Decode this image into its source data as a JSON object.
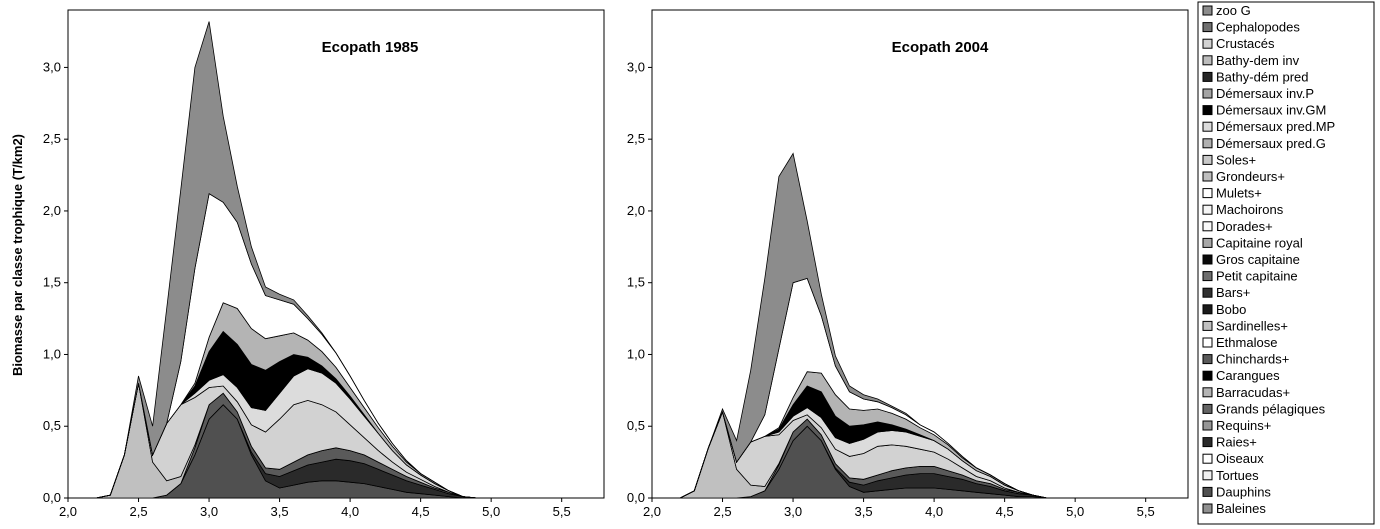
{
  "ylabel": "Biomasse par classe trophique (T/km2)",
  "legend": [
    {
      "label": "zoo G",
      "color": "#8c8c8c"
    },
    {
      "label": "Cephalopodes",
      "color": "#707070"
    },
    {
      "label": "Crustacés",
      "color": "#d2d2d2"
    },
    {
      "label": "Bathy-dem inv",
      "color": "#bcbcbc"
    },
    {
      "label": "Bathy-dém pred",
      "color": "#262626"
    },
    {
      "label": "Démersaux inv.P",
      "color": "#a4a4a4"
    },
    {
      "label": "Démersaux inv.GM",
      "color": "#000000"
    },
    {
      "label": "Démersaux pred.MP",
      "color": "#dcdcdc"
    },
    {
      "label": "Démersaux pred.G",
      "color": "#b0b0b0"
    },
    {
      "label": "Soles+",
      "color": "#c8c8c8"
    },
    {
      "label": "Grondeurs+",
      "color": "#bebebe"
    },
    {
      "label": "Mulets+",
      "color": "#ffffff"
    },
    {
      "label": "Machoirons",
      "color": "#f5f5f5"
    },
    {
      "label": "Dorades+",
      "color": "#fafafa"
    },
    {
      "label": "Capitaine royal",
      "color": "#a8a8a8"
    },
    {
      "label": "Gros capitaine",
      "color": "#0a0a0a"
    },
    {
      "label": "Petit capitaine",
      "color": "#6e6e6e"
    },
    {
      "label": "Bars+",
      "color": "#303030"
    },
    {
      "label": "Bobo",
      "color": "#1a1a1a"
    },
    {
      "label": "Sardinelles+",
      "color": "#c0c0c0"
    },
    {
      "label": "Ethmalose",
      "color": "#ffffff"
    },
    {
      "label": "Chinchards+",
      "color": "#5a5a5a"
    },
    {
      "label": "Carangues",
      "color": "#000000"
    },
    {
      "label": "Barracudas+",
      "color": "#b4b4b4"
    },
    {
      "label": "Grands pélagiques",
      "color": "#646464"
    },
    {
      "label": "Requins+",
      "color": "#969696"
    },
    {
      "label": "Raies+",
      "color": "#2a2a2a"
    },
    {
      "label": "Oiseaux",
      "color": "#ffffff"
    },
    {
      "label": "Tortues",
      "color": "#f0f0f0"
    },
    {
      "label": "Dauphins",
      "color": "#505050"
    },
    {
      "label": "Baleines",
      "color": "#909090"
    }
  ],
  "chart_data": [
    {
      "type": "area",
      "title": "Ecopath 1985",
      "xlabel": "",
      "ylabel": "Biomasse par classe trophique (T/km2)",
      "xlim": [
        2.0,
        5.8
      ],
      "ylim": [
        0.0,
        3.4
      ],
      "x_ticks": [
        "2,0",
        "2,5",
        "3,0",
        "3,5",
        "4,0",
        "4,5",
        "5,0",
        "5,5"
      ],
      "y_ticks": [
        "0,0",
        "0,5",
        "1,0",
        "1,5",
        "2,0",
        "2,5",
        "3,0"
      ],
      "stacked": true,
      "x": [
        2.0,
        2.1,
        2.2,
        2.3,
        2.4,
        2.5,
        2.6,
        2.7,
        2.8,
        2.9,
        3.0,
        3.1,
        3.2,
        3.3,
        3.4,
        3.5,
        3.6,
        3.7,
        3.8,
        3.9,
        4.0,
        4.1,
        4.2,
        4.3,
        4.4,
        4.5,
        4.6,
        4.7,
        4.8,
        4.9,
        5.0,
        5.2,
        5.5,
        5.8
      ],
      "series": [
        {
          "name": "Dauphins",
          "values": [
            0,
            0,
            0,
            0,
            0,
            0,
            0,
            0.02,
            0.1,
            0.3,
            0.55,
            0.65,
            0.55,
            0.3,
            0.12,
            0.07,
            0.09,
            0.11,
            0.12,
            0.12,
            0.11,
            0.1,
            0.08,
            0.06,
            0.04,
            0.03,
            0.02,
            0.01,
            0,
            0,
            0,
            0,
            0,
            0
          ]
        },
        {
          "name": "Raies+",
          "values": [
            0,
            0,
            0,
            0,
            0,
            0,
            0,
            0,
            0,
            0,
            0,
            0,
            0,
            0.02,
            0.05,
            0.08,
            0.1,
            0.12,
            0.13,
            0.15,
            0.15,
            0.14,
            0.12,
            0.1,
            0.08,
            0.06,
            0.04,
            0.02,
            0.01,
            0,
            0,
            0,
            0,
            0
          ]
        },
        {
          "name": "Chinchards+",
          "values": [
            0,
            0,
            0,
            0,
            0,
            0,
            0,
            0,
            0,
            0.05,
            0.1,
            0.08,
            0.05,
            0.04,
            0.04,
            0.05,
            0.06,
            0.07,
            0.08,
            0.08,
            0.07,
            0.06,
            0.05,
            0.04,
            0.03,
            0.02,
            0.01,
            0.01,
            0,
            0,
            0,
            0,
            0,
            0
          ]
        },
        {
          "name": "Sardinelles+",
          "values": [
            0,
            0,
            0,
            0.02,
            0.3,
            0.8,
            0.25,
            0.1,
            0.05,
            0.02,
            0,
            0,
            0,
            0,
            0,
            0,
            0,
            0,
            0,
            0,
            0,
            0,
            0,
            0,
            0,
            0,
            0,
            0,
            0,
            0,
            0,
            0,
            0,
            0
          ]
        },
        {
          "name": "Crustacés",
          "values": [
            0,
            0,
            0,
            0,
            0,
            0,
            0.05,
            0.4,
            0.5,
            0.33,
            0.12,
            0.05,
            0.07,
            0.15,
            0.25,
            0.35,
            0.4,
            0.38,
            0.32,
            0.25,
            0.18,
            0.12,
            0.08,
            0.05,
            0.03,
            0.02,
            0.01,
            0,
            0,
            0,
            0,
            0,
            0,
            0
          ]
        },
        {
          "name": "Démersaux pred.MP",
          "values": [
            0,
            0,
            0,
            0,
            0,
            0,
            0,
            0,
            0,
            0.03,
            0.05,
            0.08,
            0.1,
            0.12,
            0.15,
            0.18,
            0.2,
            0.22,
            0.22,
            0.2,
            0.18,
            0.15,
            0.12,
            0.08,
            0.05,
            0.03,
            0.02,
            0.01,
            0,
            0,
            0,
            0,
            0,
            0
          ]
        },
        {
          "name": "Démersaux inv.GM",
          "values": [
            0,
            0,
            0,
            0,
            0,
            0,
            0,
            0,
            0,
            0.05,
            0.2,
            0.3,
            0.3,
            0.3,
            0.28,
            0.22,
            0.15,
            0.08,
            0.05,
            0.03,
            0.02,
            0.01,
            0,
            0,
            0,
            0,
            0,
            0,
            0,
            0,
            0,
            0,
            0,
            0
          ]
        },
        {
          "name": "Barracudas+",
          "values": [
            0,
            0,
            0,
            0,
            0,
            0,
            0,
            0,
            0,
            0.02,
            0.1,
            0.2,
            0.25,
            0.25,
            0.22,
            0.18,
            0.15,
            0.12,
            0.1,
            0.08,
            0.06,
            0.05,
            0.04,
            0.03,
            0.02,
            0.01,
            0.01,
            0,
            0,
            0,
            0,
            0,
            0,
            0
          ]
        },
        {
          "name": "Mulets+",
          "values": [
            0,
            0,
            0,
            0,
            0,
            0,
            0,
            0,
            0.3,
            0.8,
            1.0,
            0.7,
            0.6,
            0.45,
            0.3,
            0.25,
            0.2,
            0.15,
            0.12,
            0.1,
            0.08,
            0.05,
            0.03,
            0.02,
            0.01,
            0,
            0,
            0,
            0,
            0,
            0,
            0,
            0,
            0
          ]
        },
        {
          "name": "zoo G",
          "values": [
            0,
            0,
            0,
            0,
            0,
            0.05,
            0.2,
            0.8,
            1.2,
            1.4,
            1.2,
            0.6,
            0.25,
            0.12,
            0.06,
            0.04,
            0.03,
            0.02,
            0.01,
            0,
            0,
            0,
            0,
            0,
            0,
            0,
            0,
            0,
            0,
            0,
            0,
            0,
            0,
            0
          ]
        }
      ]
    },
    {
      "type": "area",
      "title": "Ecopath 2004",
      "xlabel": "",
      "ylabel": "",
      "xlim": [
        2.0,
        5.8
      ],
      "ylim": [
        0.0,
        3.4
      ],
      "x_ticks": [
        "2,0",
        "2,5",
        "3,0",
        "3,5",
        "4,0",
        "4,5",
        "5,0",
        "5,5"
      ],
      "y_ticks": [
        "0,0",
        "0,5",
        "1,0",
        "1,5",
        "2,0",
        "2,5",
        "3,0"
      ],
      "stacked": true,
      "x": [
        2.0,
        2.1,
        2.2,
        2.3,
        2.4,
        2.5,
        2.6,
        2.7,
        2.8,
        2.9,
        3.0,
        3.1,
        3.2,
        3.3,
        3.4,
        3.5,
        3.6,
        3.7,
        3.8,
        3.9,
        4.0,
        4.1,
        4.2,
        4.3,
        4.4,
        4.5,
        4.6,
        4.7,
        4.8,
        4.9,
        5.0,
        5.2,
        5.5,
        5.8
      ],
      "series": [
        {
          "name": "Dauphins",
          "values": [
            0,
            0,
            0,
            0,
            0,
            0,
            0,
            0.01,
            0.05,
            0.2,
            0.4,
            0.5,
            0.4,
            0.2,
            0.08,
            0.04,
            0.05,
            0.06,
            0.07,
            0.07,
            0.07,
            0.06,
            0.05,
            0.04,
            0.03,
            0.02,
            0.01,
            0.01,
            0,
            0,
            0,
            0,
            0,
            0
          ]
        },
        {
          "name": "Raies+",
          "values": [
            0,
            0,
            0,
            0,
            0,
            0,
            0,
            0,
            0,
            0,
            0,
            0,
            0,
            0.01,
            0.03,
            0.05,
            0.07,
            0.08,
            0.09,
            0.1,
            0.1,
            0.09,
            0.08,
            0.06,
            0.05,
            0.03,
            0.02,
            0.01,
            0,
            0,
            0,
            0,
            0,
            0
          ]
        },
        {
          "name": "Chinchards+",
          "values": [
            0,
            0,
            0,
            0,
            0,
            0,
            0,
            0,
            0,
            0.03,
            0.06,
            0.05,
            0.04,
            0.03,
            0.03,
            0.04,
            0.04,
            0.05,
            0.05,
            0.05,
            0.05,
            0.04,
            0.03,
            0.02,
            0.02,
            0.01,
            0.01,
            0,
            0,
            0,
            0,
            0,
            0,
            0
          ]
        },
        {
          "name": "Sardinelles+",
          "values": [
            0,
            0,
            0,
            0.05,
            0.35,
            0.6,
            0.2,
            0.08,
            0.03,
            0.01,
            0,
            0,
            0,
            0,
            0,
            0,
            0,
            0,
            0,
            0,
            0,
            0,
            0,
            0,
            0,
            0,
            0,
            0,
            0,
            0,
            0,
            0,
            0,
            0
          ]
        },
        {
          "name": "Crustacés",
          "values": [
            0,
            0,
            0,
            0,
            0,
            0,
            0.05,
            0.3,
            0.35,
            0.2,
            0.08,
            0.03,
            0.05,
            0.1,
            0.15,
            0.18,
            0.2,
            0.18,
            0.15,
            0.12,
            0.1,
            0.08,
            0.05,
            0.03,
            0.02,
            0.01,
            0,
            0,
            0,
            0,
            0,
            0,
            0,
            0
          ]
        },
        {
          "name": "Démersaux pred.MP",
          "values": [
            0,
            0,
            0,
            0,
            0,
            0,
            0,
            0,
            0,
            0.02,
            0.03,
            0.05,
            0.07,
            0.08,
            0.09,
            0.1,
            0.1,
            0.1,
            0.1,
            0.09,
            0.08,
            0.07,
            0.05,
            0.04,
            0.03,
            0.02,
            0.01,
            0,
            0,
            0,
            0,
            0,
            0,
            0
          ]
        },
        {
          "name": "Démersaux inv.GM",
          "values": [
            0,
            0,
            0,
            0,
            0,
            0,
            0,
            0,
            0,
            0.02,
            0.08,
            0.15,
            0.18,
            0.15,
            0.12,
            0.1,
            0.07,
            0.04,
            0.02,
            0.01,
            0,
            0,
            0,
            0,
            0,
            0,
            0,
            0,
            0,
            0,
            0,
            0,
            0,
            0
          ]
        },
        {
          "name": "Barracudas+",
          "values": [
            0,
            0,
            0,
            0,
            0,
            0,
            0,
            0,
            0,
            0.01,
            0.05,
            0.1,
            0.13,
            0.15,
            0.12,
            0.1,
            0.09,
            0.08,
            0.07,
            0.05,
            0.04,
            0.03,
            0.02,
            0.02,
            0.01,
            0.01,
            0,
            0,
            0,
            0,
            0,
            0,
            0,
            0
          ]
        },
        {
          "name": "Ethmalose",
          "values": [
            0,
            0,
            0,
            0,
            0,
            0,
            0,
            0,
            0.15,
            0.55,
            0.8,
            0.65,
            0.4,
            0.2,
            0.12,
            0.08,
            0.05,
            0.04,
            0.03,
            0.02,
            0.02,
            0.01,
            0.01,
            0,
            0,
            0,
            0,
            0,
            0,
            0,
            0,
            0,
            0,
            0
          ]
        },
        {
          "name": "zoo G",
          "values": [
            0,
            0,
            0,
            0,
            0,
            0.02,
            0.15,
            0.5,
            0.95,
            1.2,
            0.9,
            0.4,
            0.15,
            0.07,
            0.04,
            0.03,
            0.02,
            0.01,
            0.01,
            0,
            0,
            0,
            0,
            0,
            0,
            0,
            0,
            0,
            0,
            0,
            0,
            0,
            0,
            0
          ]
        }
      ]
    }
  ]
}
